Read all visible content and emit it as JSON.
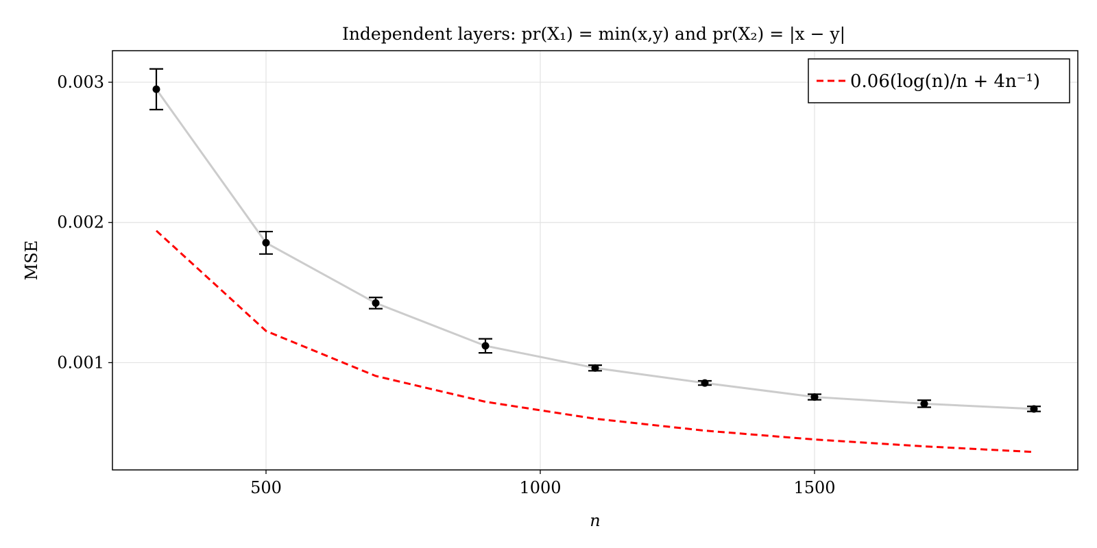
{
  "chart_data": {
    "type": "line",
    "title": "Independent layers: pr(X₁) = min(x,y) and pr(X₂) = |x − y|",
    "xlabel": "n",
    "ylabel": "MSE",
    "xlim": [
      220,
      1980
    ],
    "ylim": [
      0.000235,
      0.003225
    ],
    "x_ticks": [
      500,
      1000,
      1500
    ],
    "x_tick_labels": [
      "500",
      "1000",
      "1500"
    ],
    "y_ticks": [
      0.001,
      0.002,
      0.003
    ],
    "y_tick_labels": [
      "0.001",
      "0.002",
      "0.003"
    ],
    "grid": true,
    "legend_position": "top-right",
    "x": [
      300,
      500,
      700,
      900,
      1100,
      1300,
      1500,
      1700,
      1900
    ],
    "series": [
      {
        "role": "estimate",
        "style": "markers-with-errorbars-and-line",
        "line_color": "#cccccc",
        "marker_color": "#000000",
        "values": [
          0.00295,
          0.001855,
          0.001425,
          0.00112,
          0.000962,
          0.000855,
          0.000755,
          0.000707,
          0.00067
        ],
        "errors": [
          0.000145,
          8e-05,
          4e-05,
          5e-05,
          2e-05,
          1.5e-05,
          2e-05,
          2.5e-05,
          1.8e-05
        ]
      },
      {
        "name": "0.06(log(n)/n + 4n⁻¹)",
        "role": "reference",
        "style": "dashed",
        "color": "#ff0000",
        "values": [
          0.001941,
          0.001226,
          0.000905,
          0.000721,
          0.0006,
          0.000515,
          0.000452,
          0.000403,
          0.000363
        ]
      }
    ]
  }
}
